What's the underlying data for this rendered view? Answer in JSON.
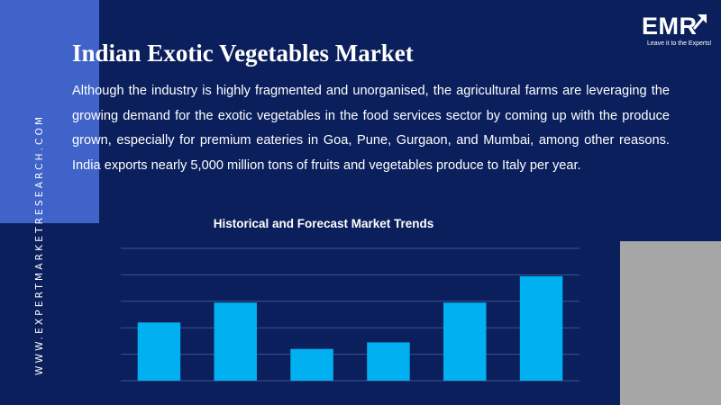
{
  "brand": {
    "side_url": "WWW.EXPERTMARKETRESEARCH.COM",
    "logo_text": "EMR",
    "logo_tagline": "Leave it to the Experts!",
    "arrow_icon": "up-right-arrow-icon"
  },
  "title": "Indian Exotic Vegetables Market",
  "description": "Although the industry is highly fragmented and unorganised, the agricultural farms are leveraging the growing demand for the exotic vegetables in the food services sector by coming up with the produce grown, especially for premium eateries in Goa, Pune, Gurgaon, and Mumbai, among other reasons. India exports nearly 5,000 million tons of fruits and vegetables produce to Italy per year.",
  "colors": {
    "background": "#0a1f5c",
    "accent_block": "#3f63c9",
    "gray_block": "#a6a6a6",
    "bar": "#00b0f0",
    "gridline": "#3a5590"
  },
  "chart_data": {
    "type": "bar",
    "title": "Historical and Forecast Market Trends",
    "categories": [
      "",
      "",
      "",
      "",
      "",
      ""
    ],
    "values": [
      2.2,
      2.95,
      1.2,
      1.45,
      2.95,
      3.95
    ],
    "ylim": [
      0,
      5
    ],
    "grid": true,
    "axis_labels_visible": false,
    "legend": "none"
  }
}
